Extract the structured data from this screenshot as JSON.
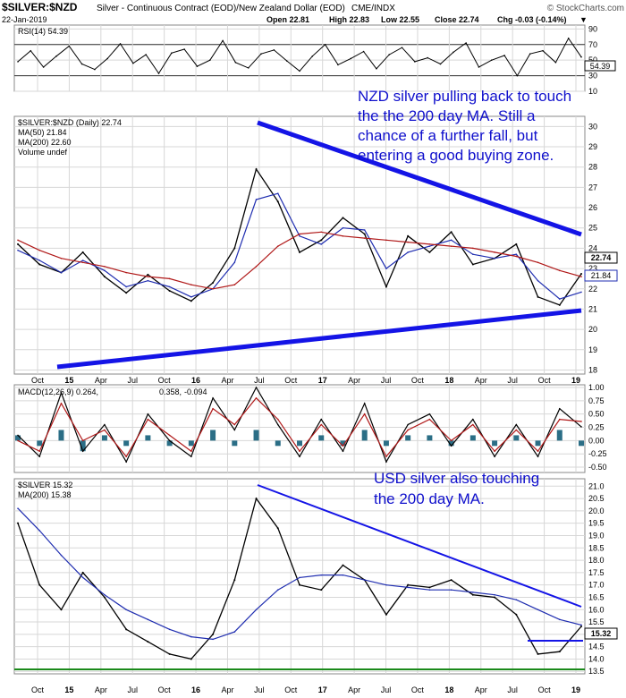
{
  "header": {
    "symbol": "$SILVER:$NZD",
    "name": "Silver - Continuous Contract (EOD)/New Zealand Dollar (EOD)",
    "exchange": "CME/INDX",
    "brand": "© StockCharts.com",
    "date": "22-Jan-2019",
    "open": "Open 22.81",
    "high": "High 22.83",
    "low": "Low 22.55",
    "close": "Close 22.74",
    "chg": "Chg -0.03 (-0.14%)",
    "chg_arrow": "▼"
  },
  "colors": {
    "price": "#000000",
    "ma50": "#1f2db0",
    "ma200": "#b01818",
    "trend": "#1414e6",
    "green": "#1a8a1a",
    "annotation": "#1010cc",
    "grid": "#d7d7d7",
    "macd_hist": "#2b6e86"
  },
  "chart_data": [
    {
      "type": "line",
      "panel": "RSI",
      "legend": "RSI(14) 54.39",
      "last_value": "54.39",
      "ylim": [
        10,
        95
      ],
      "y_ticks": [
        "90",
        "70",
        "50",
        "30",
        "10"
      ],
      "levels": [
        70,
        30
      ],
      "series": [
        {
          "name": "RSI(14)",
          "values": [
            48,
            62,
            41,
            55,
            68,
            45,
            38,
            52,
            71,
            46,
            57,
            33,
            59,
            64,
            42,
            50,
            75,
            47,
            40,
            58,
            63,
            49,
            36,
            55,
            70,
            44,
            52,
            61,
            39,
            57,
            66,
            48,
            53,
            45,
            60,
            72,
            41,
            50,
            56,
            30,
            58,
            62,
            47,
            78,
            54
          ]
        }
      ]
    },
    {
      "type": "line",
      "panel": "price",
      "legend": "$SILVER:$NZD (Daily) 22.74",
      "legend_ma50": "MA(50) 21.84",
      "legend_ma200": "MA(200) 22.60",
      "legend_vol": "Volume undef",
      "last_price": "22.74",
      "last_ma50": "21.84",
      "ylim": [
        17.8,
        30.5
      ],
      "y_ticks": [
        "30",
        "29",
        "28",
        "27",
        "26",
        "25",
        "24",
        "23",
        "22",
        "21",
        "20",
        "19",
        "18"
      ],
      "x_ticks": [
        "Oct",
        "15",
        "Apr",
        "Jul",
        "Oct",
        "16",
        "Apr",
        "Jul",
        "Oct",
        "17",
        "Apr",
        "Jul",
        "Oct",
        "18",
        "Apr",
        "Jul",
        "Oct",
        "19"
      ],
      "x": [
        "2014-09",
        "2014-11",
        "2015-01",
        "2015-03",
        "2015-05",
        "2015-07",
        "2015-09",
        "2015-11",
        "2016-01",
        "2016-03",
        "2016-05",
        "2016-07",
        "2016-09",
        "2016-11",
        "2017-01",
        "2017-03",
        "2017-05",
        "2017-07",
        "2017-09",
        "2017-11",
        "2018-01",
        "2018-03",
        "2018-05",
        "2018-07",
        "2018-09",
        "2018-11",
        "2019-01"
      ],
      "series": [
        {
          "name": "$SILVER:$NZD",
          "values": [
            24.2,
            23.2,
            22.8,
            23.8,
            22.6,
            21.8,
            22.7,
            21.9,
            21.4,
            22.3,
            24.0,
            27.9,
            26.3,
            23.8,
            24.4,
            25.5,
            24.7,
            22.1,
            24.6,
            23.8,
            24.8,
            23.2,
            23.5,
            24.2,
            21.6,
            21.2,
            22.74
          ]
        },
        {
          "name": "MA(50)",
          "values": [
            23.9,
            23.4,
            22.8,
            23.4,
            22.9,
            22.1,
            22.4,
            22.1,
            21.6,
            22.0,
            23.3,
            26.4,
            26.7,
            24.6,
            24.2,
            25.0,
            24.9,
            23.0,
            23.8,
            24.1,
            24.4,
            23.7,
            23.5,
            23.7,
            22.4,
            21.5,
            21.84
          ]
        },
        {
          "name": "MA(200)",
          "values": [
            24.4,
            23.9,
            23.5,
            23.3,
            23.1,
            22.8,
            22.6,
            22.5,
            22.2,
            22.0,
            22.2,
            23.1,
            24.1,
            24.7,
            24.8,
            24.6,
            24.5,
            24.4,
            24.3,
            24.2,
            24.1,
            24.0,
            23.8,
            23.6,
            23.3,
            22.9,
            22.6
          ]
        }
      ]
    },
    {
      "type": "line",
      "panel": "MACD",
      "legend_main": "MACD(12,26,9) 0.264,",
      "legend_signal": "0.358,",
      "legend_hist": "-0.094",
      "ylim": [
        -0.6,
        1.05
      ],
      "y_ticks": [
        "1.00",
        "0.75",
        "0.50",
        "0.25",
        "0.00",
        "-0.25",
        "-0.50"
      ],
      "last_values": [
        "0.358",
        "0.264",
        "-0.094"
      ],
      "series": [
        {
          "name": "MACD",
          "values": [
            0.1,
            -0.3,
            0.9,
            -0.2,
            0.3,
            -0.4,
            0.5,
            0.0,
            -0.3,
            0.8,
            0.2,
            1.0,
            0.3,
            -0.3,
            0.4,
            -0.2,
            0.7,
            -0.4,
            0.3,
            0.5,
            -0.1,
            0.4,
            -0.3,
            0.3,
            -0.3,
            0.6,
            0.26
          ]
        },
        {
          "name": "Signal",
          "values": [
            0.0,
            -0.2,
            0.7,
            0.0,
            0.2,
            -0.3,
            0.4,
            0.1,
            -0.2,
            0.6,
            0.3,
            0.8,
            0.4,
            -0.2,
            0.3,
            -0.1,
            0.5,
            -0.3,
            0.2,
            0.4,
            0.0,
            0.3,
            -0.2,
            0.2,
            -0.2,
            0.4,
            0.36
          ]
        }
      ]
    },
    {
      "type": "line",
      "panel": "usd",
      "legend": "$SILVER 15.32",
      "legend_ma200": "MA(200) 15.38",
      "last_price": "15.32",
      "ylim": [
        13.4,
        21.3
      ],
      "y_ticks": [
        "21.0",
        "20.5",
        "20.0",
        "19.5",
        "19.0",
        "18.5",
        "18.0",
        "17.5",
        "17.0",
        "16.5",
        "16.0",
        "15.5",
        "15.0",
        "14.5",
        "14.0",
        "13.5"
      ],
      "x_ticks": [
        "Oct",
        "15",
        "Apr",
        "Jul",
        "Oct",
        "16",
        "Apr",
        "Jul",
        "Oct",
        "17",
        "Apr",
        "Jul",
        "Oct",
        "18",
        "Apr",
        "Jul",
        "Oct",
        "19"
      ],
      "x": [
        "2014-09",
        "2014-11",
        "2015-01",
        "2015-03",
        "2015-05",
        "2015-07",
        "2015-09",
        "2015-11",
        "2016-01",
        "2016-03",
        "2016-05",
        "2016-07",
        "2016-09",
        "2016-11",
        "2017-01",
        "2017-03",
        "2017-05",
        "2017-07",
        "2017-09",
        "2017-11",
        "2018-01",
        "2018-03",
        "2018-05",
        "2018-07",
        "2018-09",
        "2018-11",
        "2019-01"
      ],
      "series": [
        {
          "name": "$SILVER",
          "values": [
            19.5,
            17.0,
            16.0,
            17.5,
            16.5,
            15.2,
            14.7,
            14.2,
            14.0,
            15.0,
            17.2,
            20.5,
            19.3,
            17.0,
            16.8,
            17.8,
            17.2,
            15.8,
            17.0,
            16.9,
            17.2,
            16.6,
            16.5,
            15.8,
            14.2,
            14.3,
            15.32
          ]
        },
        {
          "name": "MA(200)",
          "values": [
            20.1,
            19.2,
            18.2,
            17.3,
            16.6,
            16.0,
            15.6,
            15.2,
            14.9,
            14.8,
            15.1,
            16.0,
            16.8,
            17.3,
            17.4,
            17.4,
            17.2,
            17.0,
            16.9,
            16.8,
            16.8,
            16.7,
            16.6,
            16.4,
            16.0,
            15.6,
            15.38
          ]
        }
      ]
    }
  ],
  "annotations": {
    "nzd_note": [
      "NZD silver pulling back to touch",
      "the the 200 day MA. Still a",
      "chance of a further fall, but",
      "entering a good buying zone."
    ],
    "usd_note": [
      "USD silver also touching",
      "the 200 day MA."
    ]
  }
}
